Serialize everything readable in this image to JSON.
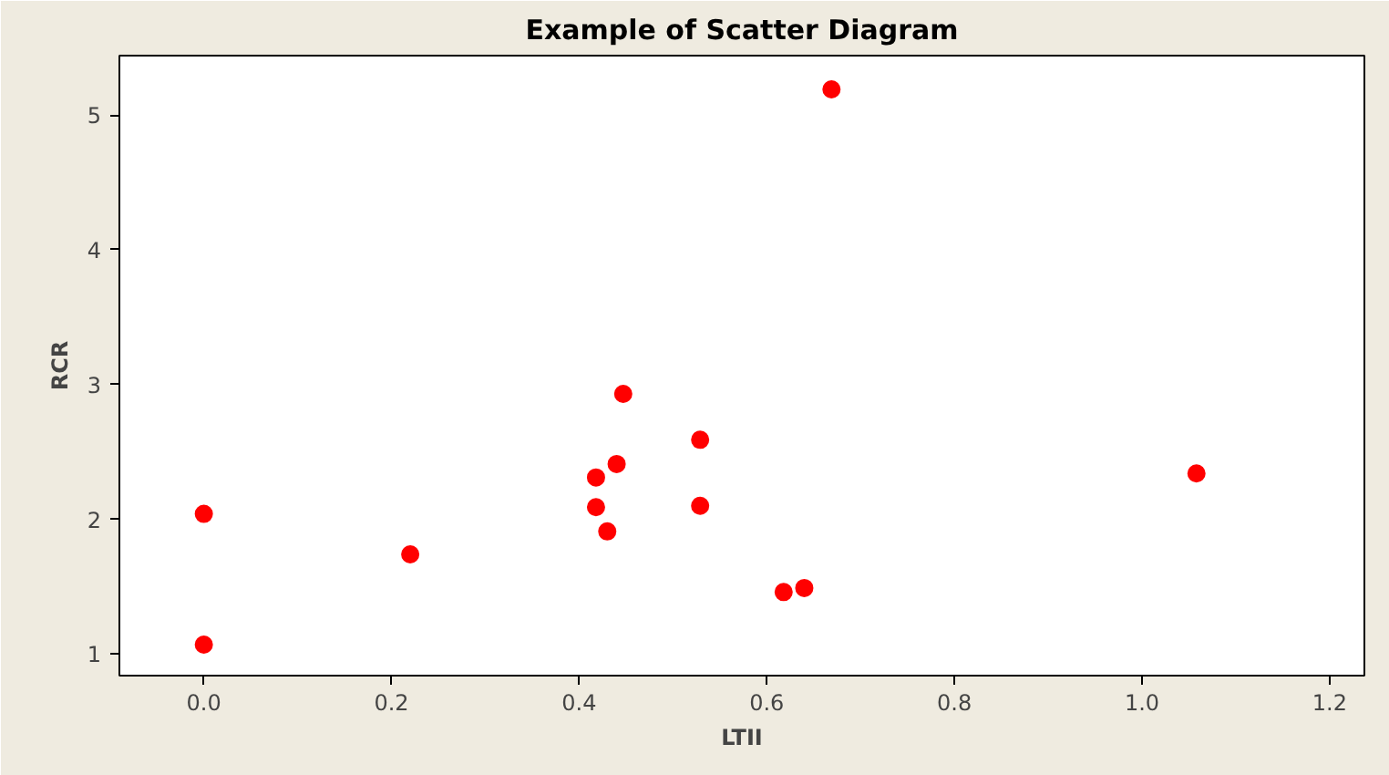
{
  "chart_data": {
    "type": "scatter",
    "title": "Example of Scatter Diagram",
    "xlabel": "LTII",
    "ylabel": "RCR",
    "x": [
      0.0,
      0.0,
      0.22,
      0.418,
      0.418,
      0.43,
      0.44,
      0.447,
      0.529,
      0.529,
      0.618,
      0.64,
      0.669,
      1.058
    ],
    "series": [
      {
        "color": "#ff0000",
        "values": [
          2.04,
          1.07,
          1.74,
          2.31,
          2.09,
          1.91,
          2.41,
          2.93,
          2.59,
          2.1,
          1.46,
          1.49,
          5.19,
          2.34
        ]
      }
    ],
    "xlim": [
      -0.09,
      1.237
    ],
    "ylim": [
      0.84,
      5.44
    ],
    "xticks": [
      {
        "value": 0,
        "label": "0.0"
      },
      0.2,
      0.4,
      0.6,
      0.8,
      {
        "value": 1,
        "label": "1.0"
      },
      1.2
    ],
    "yticks": [
      1,
      2,
      3,
      4,
      5
    ],
    "grid": false,
    "marker": "circle"
  }
}
